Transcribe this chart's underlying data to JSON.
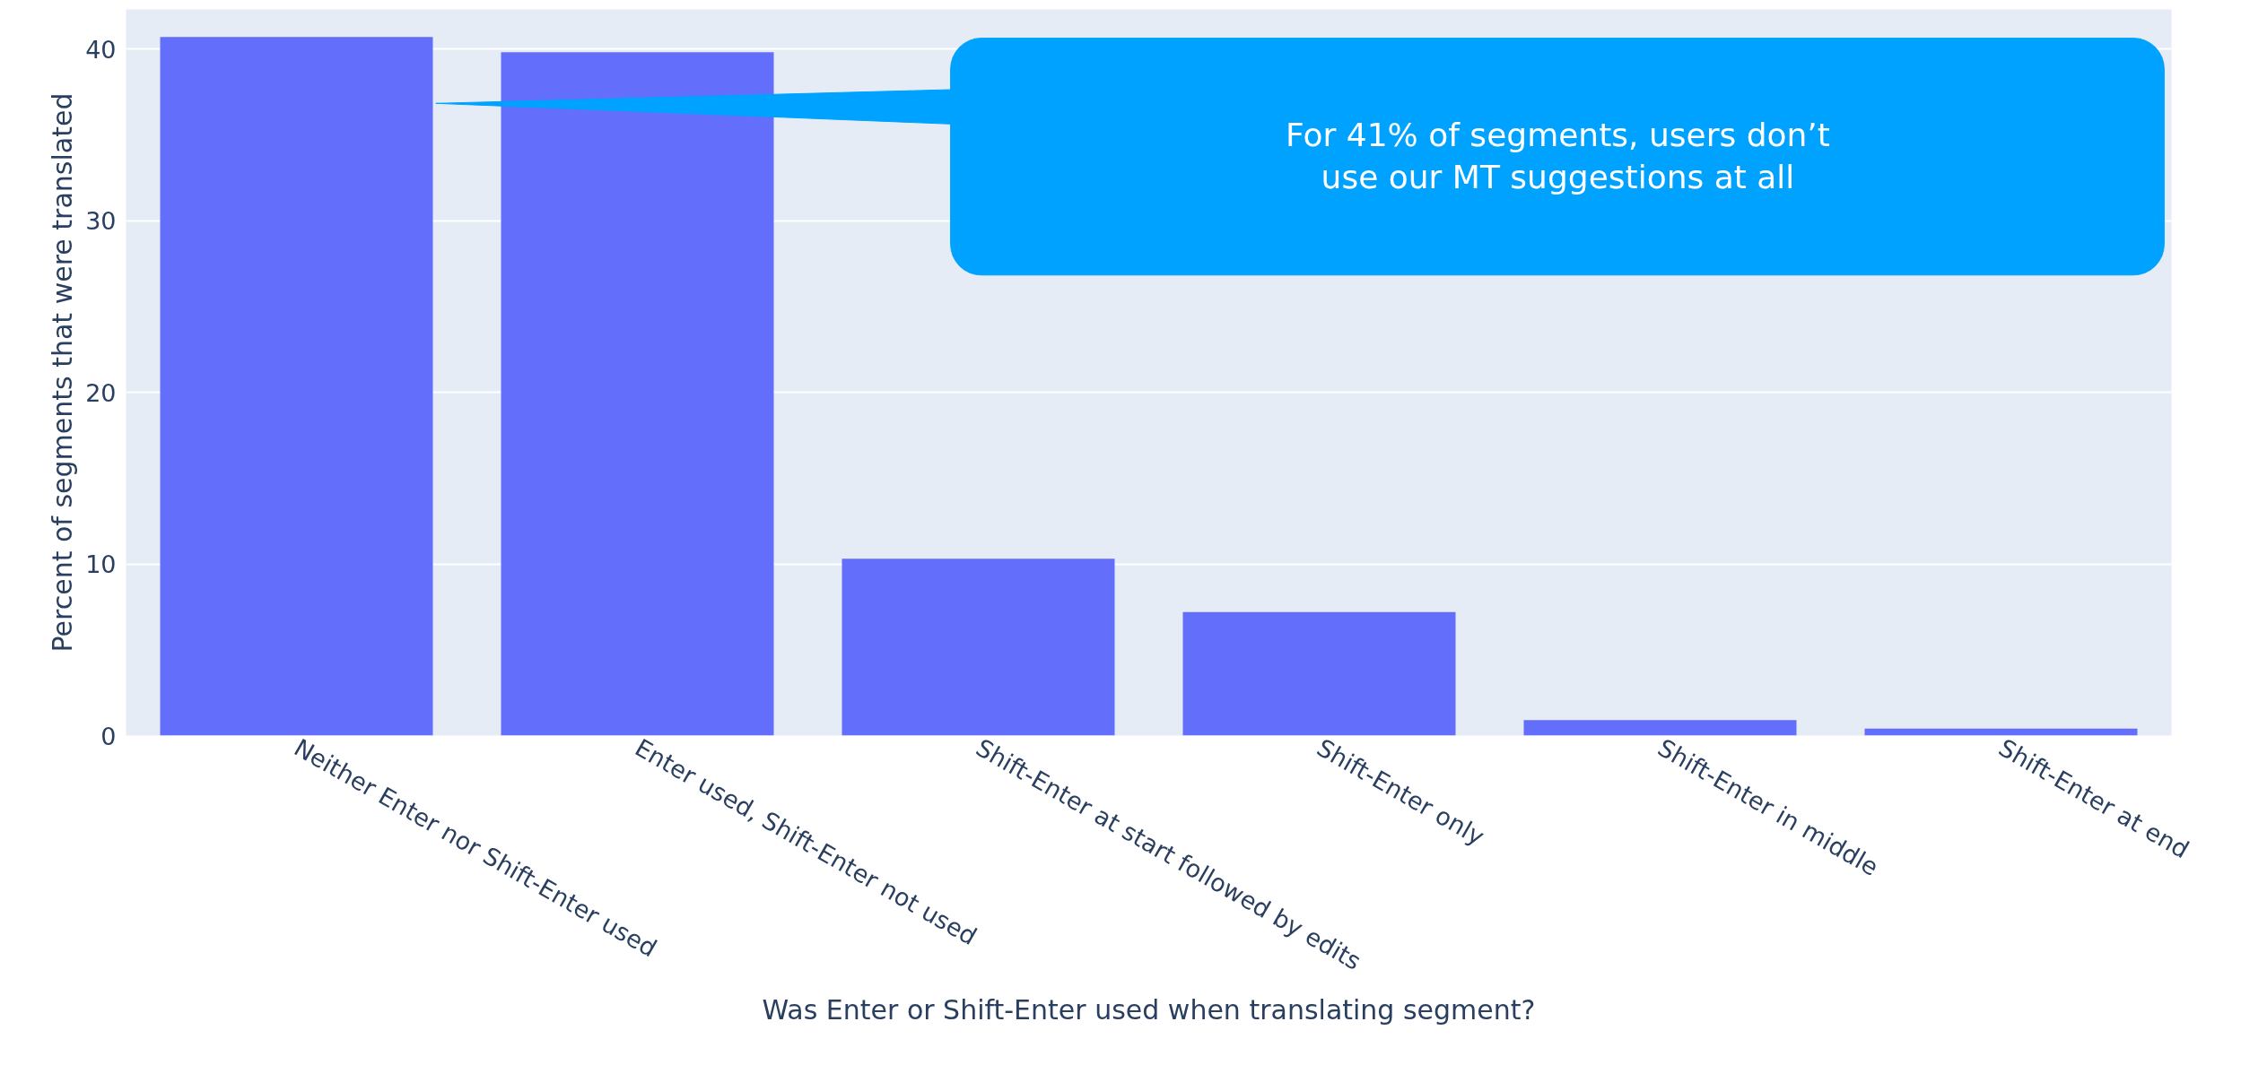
{
  "chart_data": {
    "type": "bar",
    "xlabel": "Was Enter or Shift-Enter used when translating segment?",
    "ylabel": "Percent of segments that were translated",
    "categories": [
      "Neither Enter nor Shift-Enter used",
      "Enter used, Shift-Enter not used",
      "Shift-Enter at start followed by edits",
      "Shift-Enter only",
      "Shift-Enter in middle",
      "Shift-Enter at end"
    ],
    "values": [
      40.7,
      39.8,
      10.3,
      7.2,
      0.9,
      0.4
    ],
    "color": "#636efa",
    "ylim": [
      0,
      42.3
    ],
    "yticks": [
      0,
      10,
      20,
      30,
      40
    ],
    "grid": "y",
    "annotations": [
      "For 41% of segments, users don’t use our MT suggestions at all"
    ]
  }
}
